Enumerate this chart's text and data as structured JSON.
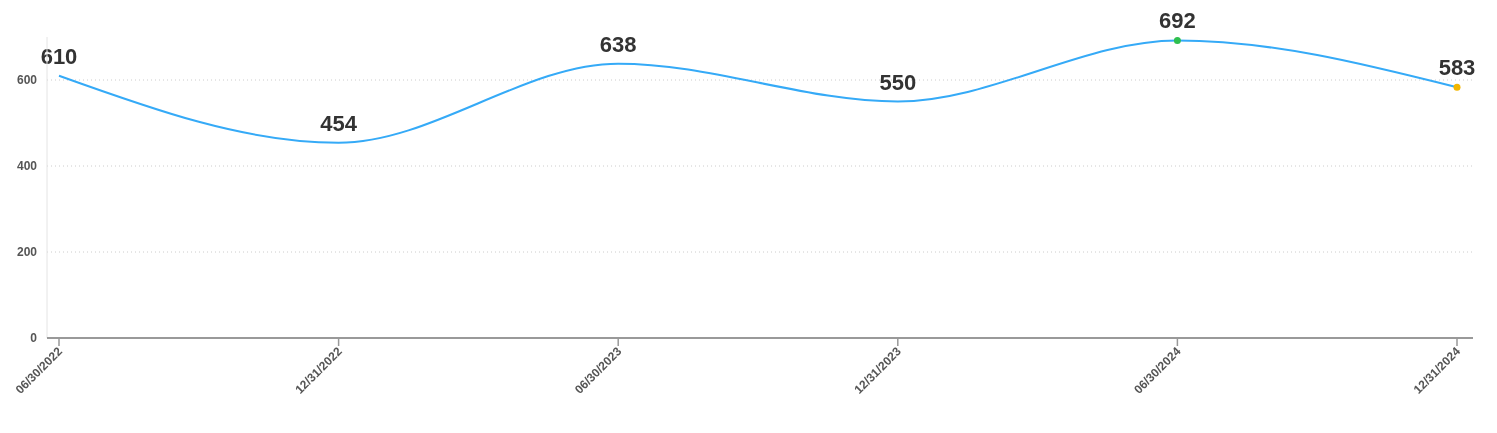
{
  "chart_data": {
    "type": "line",
    "categories": [
      "06/30/2022",
      "12/31/2022",
      "06/30/2023",
      "12/31/2023",
      "06/30/2024",
      "12/31/2024"
    ],
    "series": [
      {
        "color": "#35aaf7",
        "values": [
          610,
          454,
          638,
          550,
          692,
          583
        ],
        "value_labels": [
          "610",
          "454",
          "638",
          "550",
          "692",
          "583"
        ]
      },
      {
        "type": "scatter",
        "x": [
          "06/30/2024",
          "12/31/2024"
        ],
        "values": [
          692,
          583
        ],
        "colors": [
          "#2fbf4f",
          "#f2b600"
        ],
        "marker": "circle"
      }
    ],
    "ylim": [
      0,
      700
    ],
    "yticks": [
      0,
      200,
      400,
      600
    ],
    "grid": "y"
  }
}
